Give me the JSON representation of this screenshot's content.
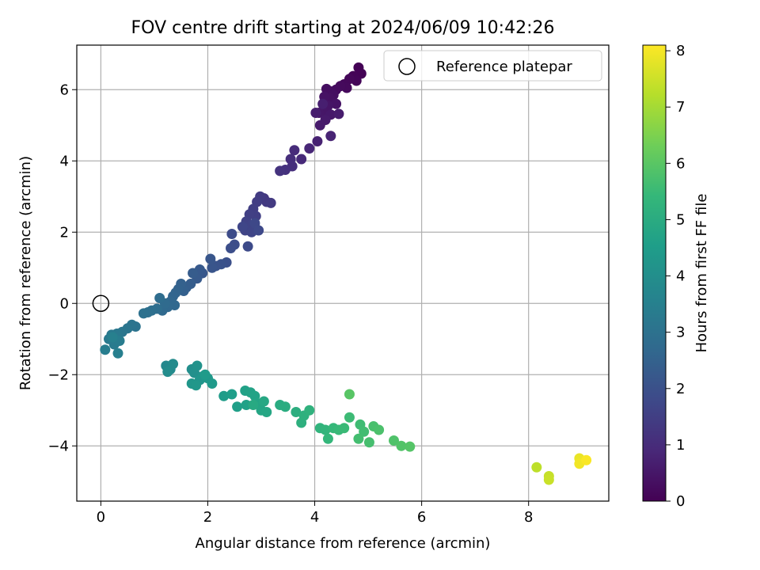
{
  "chart_data": {
    "type": "scatter",
    "title": "FOV centre drift starting at 2024/06/09 10:42:26",
    "xlabel": "Angular distance from reference (arcmin)",
    "ylabel": "Rotation from reference (arcmin)",
    "xlim": [
      -0.45,
      9.5
    ],
    "ylim": [
      -5.55,
      7.25
    ],
    "xticks": [
      0,
      2,
      4,
      6,
      8
    ],
    "yticks": [
      -4,
      -2,
      0,
      2,
      4,
      6
    ],
    "grid": true,
    "legend": {
      "position": "top-right",
      "entries": [
        "Reference platepar"
      ]
    },
    "reference_point": {
      "x": 0,
      "y": 0
    },
    "colorbar": {
      "label": "Hours from first FF file",
      "range": [
        0,
        8.1
      ],
      "ticks": [
        0,
        1,
        2,
        3,
        4,
        5,
        6,
        7,
        8
      ],
      "colormap": "viridis"
    },
    "colormap_stops": [
      "#440154",
      "#482878",
      "#3e4989",
      "#31688e",
      "#26828e",
      "#1f9e89",
      "#35b779",
      "#6ece58",
      "#b5de2b",
      "#fde725"
    ],
    "points": [
      [
        4.82,
        6.62,
        0.02
      ],
      [
        4.87,
        6.45,
        0.05
      ],
      [
        4.72,
        6.38,
        0.08
      ],
      [
        4.78,
        6.25,
        0.1
      ],
      [
        4.65,
        6.3,
        0.13
      ],
      [
        4.55,
        6.15,
        0.16
      ],
      [
        4.6,
        6.05,
        0.18
      ],
      [
        4.48,
        6.1,
        0.21
      ],
      [
        4.4,
        6.0,
        0.24
      ],
      [
        4.3,
        5.95,
        0.27
      ],
      [
        4.22,
        6.02,
        0.3
      ],
      [
        4.35,
        5.85,
        0.33
      ],
      [
        4.28,
        5.75,
        0.36
      ],
      [
        4.18,
        5.8,
        0.39
      ],
      [
        4.4,
        5.6,
        0.42
      ],
      [
        4.25,
        5.55,
        0.45
      ],
      [
        4.15,
        5.4,
        0.48
      ],
      [
        4.08,
        5.35,
        0.51
      ],
      [
        4.3,
        5.3,
        0.54
      ],
      [
        4.2,
        5.15,
        0.57
      ],
      [
        4.1,
        5.0,
        0.6
      ],
      [
        4.45,
        5.32,
        0.63
      ],
      [
        4.02,
        5.35,
        0.66
      ],
      [
        4.15,
        5.6,
        0.69
      ],
      [
        4.05,
        4.55,
        0.75
      ],
      [
        4.3,
        4.7,
        0.8
      ],
      [
        3.9,
        4.35,
        0.88
      ],
      [
        3.75,
        4.05,
        0.95
      ],
      [
        3.62,
        4.3,
        1.0
      ],
      [
        3.55,
        4.05,
        1.05
      ],
      [
        3.58,
        3.85,
        1.1
      ],
      [
        3.45,
        3.75,
        1.15
      ],
      [
        3.35,
        3.72,
        1.2
      ],
      [
        3.05,
        2.95,
        1.3
      ],
      [
        3.1,
        2.85,
        1.35
      ],
      [
        3.18,
        2.82,
        1.38
      ],
      [
        2.98,
        3.0,
        1.42
      ],
      [
        2.92,
        2.85,
        1.46
      ],
      [
        2.85,
        2.65,
        1.5
      ],
      [
        2.9,
        2.45,
        1.53
      ],
      [
        2.78,
        2.5,
        1.56
      ],
      [
        2.72,
        2.3,
        1.6
      ],
      [
        2.8,
        2.2,
        1.63
      ],
      [
        2.7,
        2.05,
        1.66
      ],
      [
        2.82,
        2.0,
        1.7
      ],
      [
        2.65,
        2.15,
        1.73
      ],
      [
        2.88,
        2.25,
        1.76
      ],
      [
        2.95,
        2.05,
        1.8
      ],
      [
        2.75,
        1.6,
        1.84
      ],
      [
        2.45,
        1.95,
        1.88
      ],
      [
        2.5,
        1.65,
        1.91
      ],
      [
        2.43,
        1.55,
        1.94
      ],
      [
        2.35,
        1.15,
        2.0
      ],
      [
        2.25,
        1.1,
        2.05
      ],
      [
        2.15,
        1.05,
        2.1
      ],
      [
        2.08,
        1.0,
        2.14
      ],
      [
        2.05,
        1.25,
        2.18
      ],
      [
        1.9,
        0.85,
        2.22
      ],
      [
        1.85,
        0.95,
        2.26
      ],
      [
        1.8,
        0.7,
        2.3
      ],
      [
        1.72,
        0.85,
        2.34
      ],
      [
        1.68,
        0.55,
        2.38
      ],
      [
        1.6,
        0.45,
        2.42
      ],
      [
        1.55,
        0.35,
        2.46
      ],
      [
        1.5,
        0.55,
        2.5
      ],
      [
        1.45,
        0.4,
        2.54
      ],
      [
        1.4,
        0.3,
        2.58
      ],
      [
        1.35,
        0.2,
        2.62
      ],
      [
        1.3,
        0.05,
        2.66
      ],
      [
        1.38,
        -0.05,
        2.7
      ],
      [
        1.25,
        -0.1,
        2.74
      ],
      [
        1.15,
        -0.2,
        2.78
      ],
      [
        1.2,
        0.0,
        2.82
      ],
      [
        1.1,
        0.15,
        2.86
      ],
      [
        1.05,
        -0.15,
        2.9
      ],
      [
        0.95,
        -0.2,
        2.94
      ],
      [
        0.88,
        -0.25,
        2.98
      ],
      [
        0.8,
        -0.28,
        3.02
      ],
      [
        0.65,
        -0.65,
        3.08
      ],
      [
        0.58,
        -0.6,
        3.12
      ],
      [
        0.5,
        -0.7,
        3.16
      ],
      [
        0.4,
        -0.8,
        3.2
      ],
      [
        0.3,
        -0.85,
        3.24
      ],
      [
        0.2,
        -0.88,
        3.28
      ],
      [
        0.15,
        -1.0,
        3.32
      ],
      [
        0.25,
        -1.15,
        3.36
      ],
      [
        0.35,
        -1.05,
        3.4
      ],
      [
        0.08,
        -1.3,
        3.44
      ],
      [
        0.32,
        -1.4,
        3.48
      ],
      [
        0.22,
        -0.95,
        3.52
      ],
      [
        1.22,
        -1.75,
        3.8
      ],
      [
        1.3,
        -1.85,
        3.84
      ],
      [
        1.35,
        -1.7,
        3.88
      ],
      [
        1.25,
        -1.92,
        3.92
      ],
      [
        1.7,
        -1.85,
        4.0
      ],
      [
        1.75,
        -1.95,
        4.05
      ],
      [
        1.8,
        -1.75,
        4.1
      ],
      [
        1.9,
        -2.05,
        4.15
      ],
      [
        1.85,
        -2.15,
        4.2
      ],
      [
        1.7,
        -2.25,
        4.24
      ],
      [
        1.78,
        -2.3,
        4.28
      ],
      [
        2.0,
        -2.1,
        4.32
      ],
      [
        2.08,
        -2.25,
        4.36
      ],
      [
        1.95,
        -2.0,
        4.4
      ],
      [
        2.3,
        -2.6,
        4.45
      ],
      [
        2.45,
        -2.55,
        4.5
      ],
      [
        2.55,
        -2.9,
        4.55
      ],
      [
        2.72,
        -2.85,
        4.6
      ],
      [
        2.7,
        -2.45,
        4.62
      ],
      [
        2.8,
        -2.5,
        4.65
      ],
      [
        2.88,
        -2.6,
        4.68
      ],
      [
        2.92,
        -2.8,
        4.72
      ],
      [
        3.0,
        -3.0,
        4.76
      ],
      [
        3.1,
        -3.05,
        4.8
      ],
      [
        3.05,
        -2.75,
        4.84
      ],
      [
        2.85,
        -2.85,
        4.88
      ],
      [
        3.35,
        -2.85,
        4.95
      ],
      [
        3.45,
        -2.9,
        5.0
      ],
      [
        3.65,
        -3.05,
        5.05
      ],
      [
        3.75,
        -3.35,
        5.1
      ],
      [
        3.8,
        -3.15,
        5.14
      ],
      [
        3.9,
        -3.0,
        5.18
      ],
      [
        4.1,
        -3.5,
        5.25
      ],
      [
        4.2,
        -3.55,
        5.3
      ],
      [
        4.25,
        -3.8,
        5.35
      ],
      [
        4.35,
        -3.5,
        5.4
      ],
      [
        4.45,
        -3.55,
        5.44
      ],
      [
        4.55,
        -3.5,
        5.48
      ],
      [
        4.65,
        -3.2,
        5.52
      ],
      [
        4.85,
        -3.4,
        5.56
      ],
      [
        4.92,
        -3.6,
        5.6
      ],
      [
        4.82,
        -3.8,
        5.64
      ],
      [
        5.02,
        -3.9,
        5.68
      ],
      [
        5.1,
        -3.45,
        5.72
      ],
      [
        5.2,
        -3.55,
        5.76
      ],
      [
        5.48,
        -3.85,
        5.82
      ],
      [
        5.62,
        -4.0,
        5.86
      ],
      [
        5.78,
        -4.02,
        5.9
      ],
      [
        4.65,
        -2.55,
        5.95
      ],
      [
        8.15,
        -4.6,
        7.3
      ],
      [
        8.38,
        -4.85,
        7.4
      ],
      [
        8.38,
        -4.95,
        7.45
      ],
      [
        8.95,
        -4.35,
        7.85
      ],
      [
        8.95,
        -4.5,
        7.95
      ],
      [
        9.08,
        -4.4,
        8.05
      ]
    ]
  }
}
